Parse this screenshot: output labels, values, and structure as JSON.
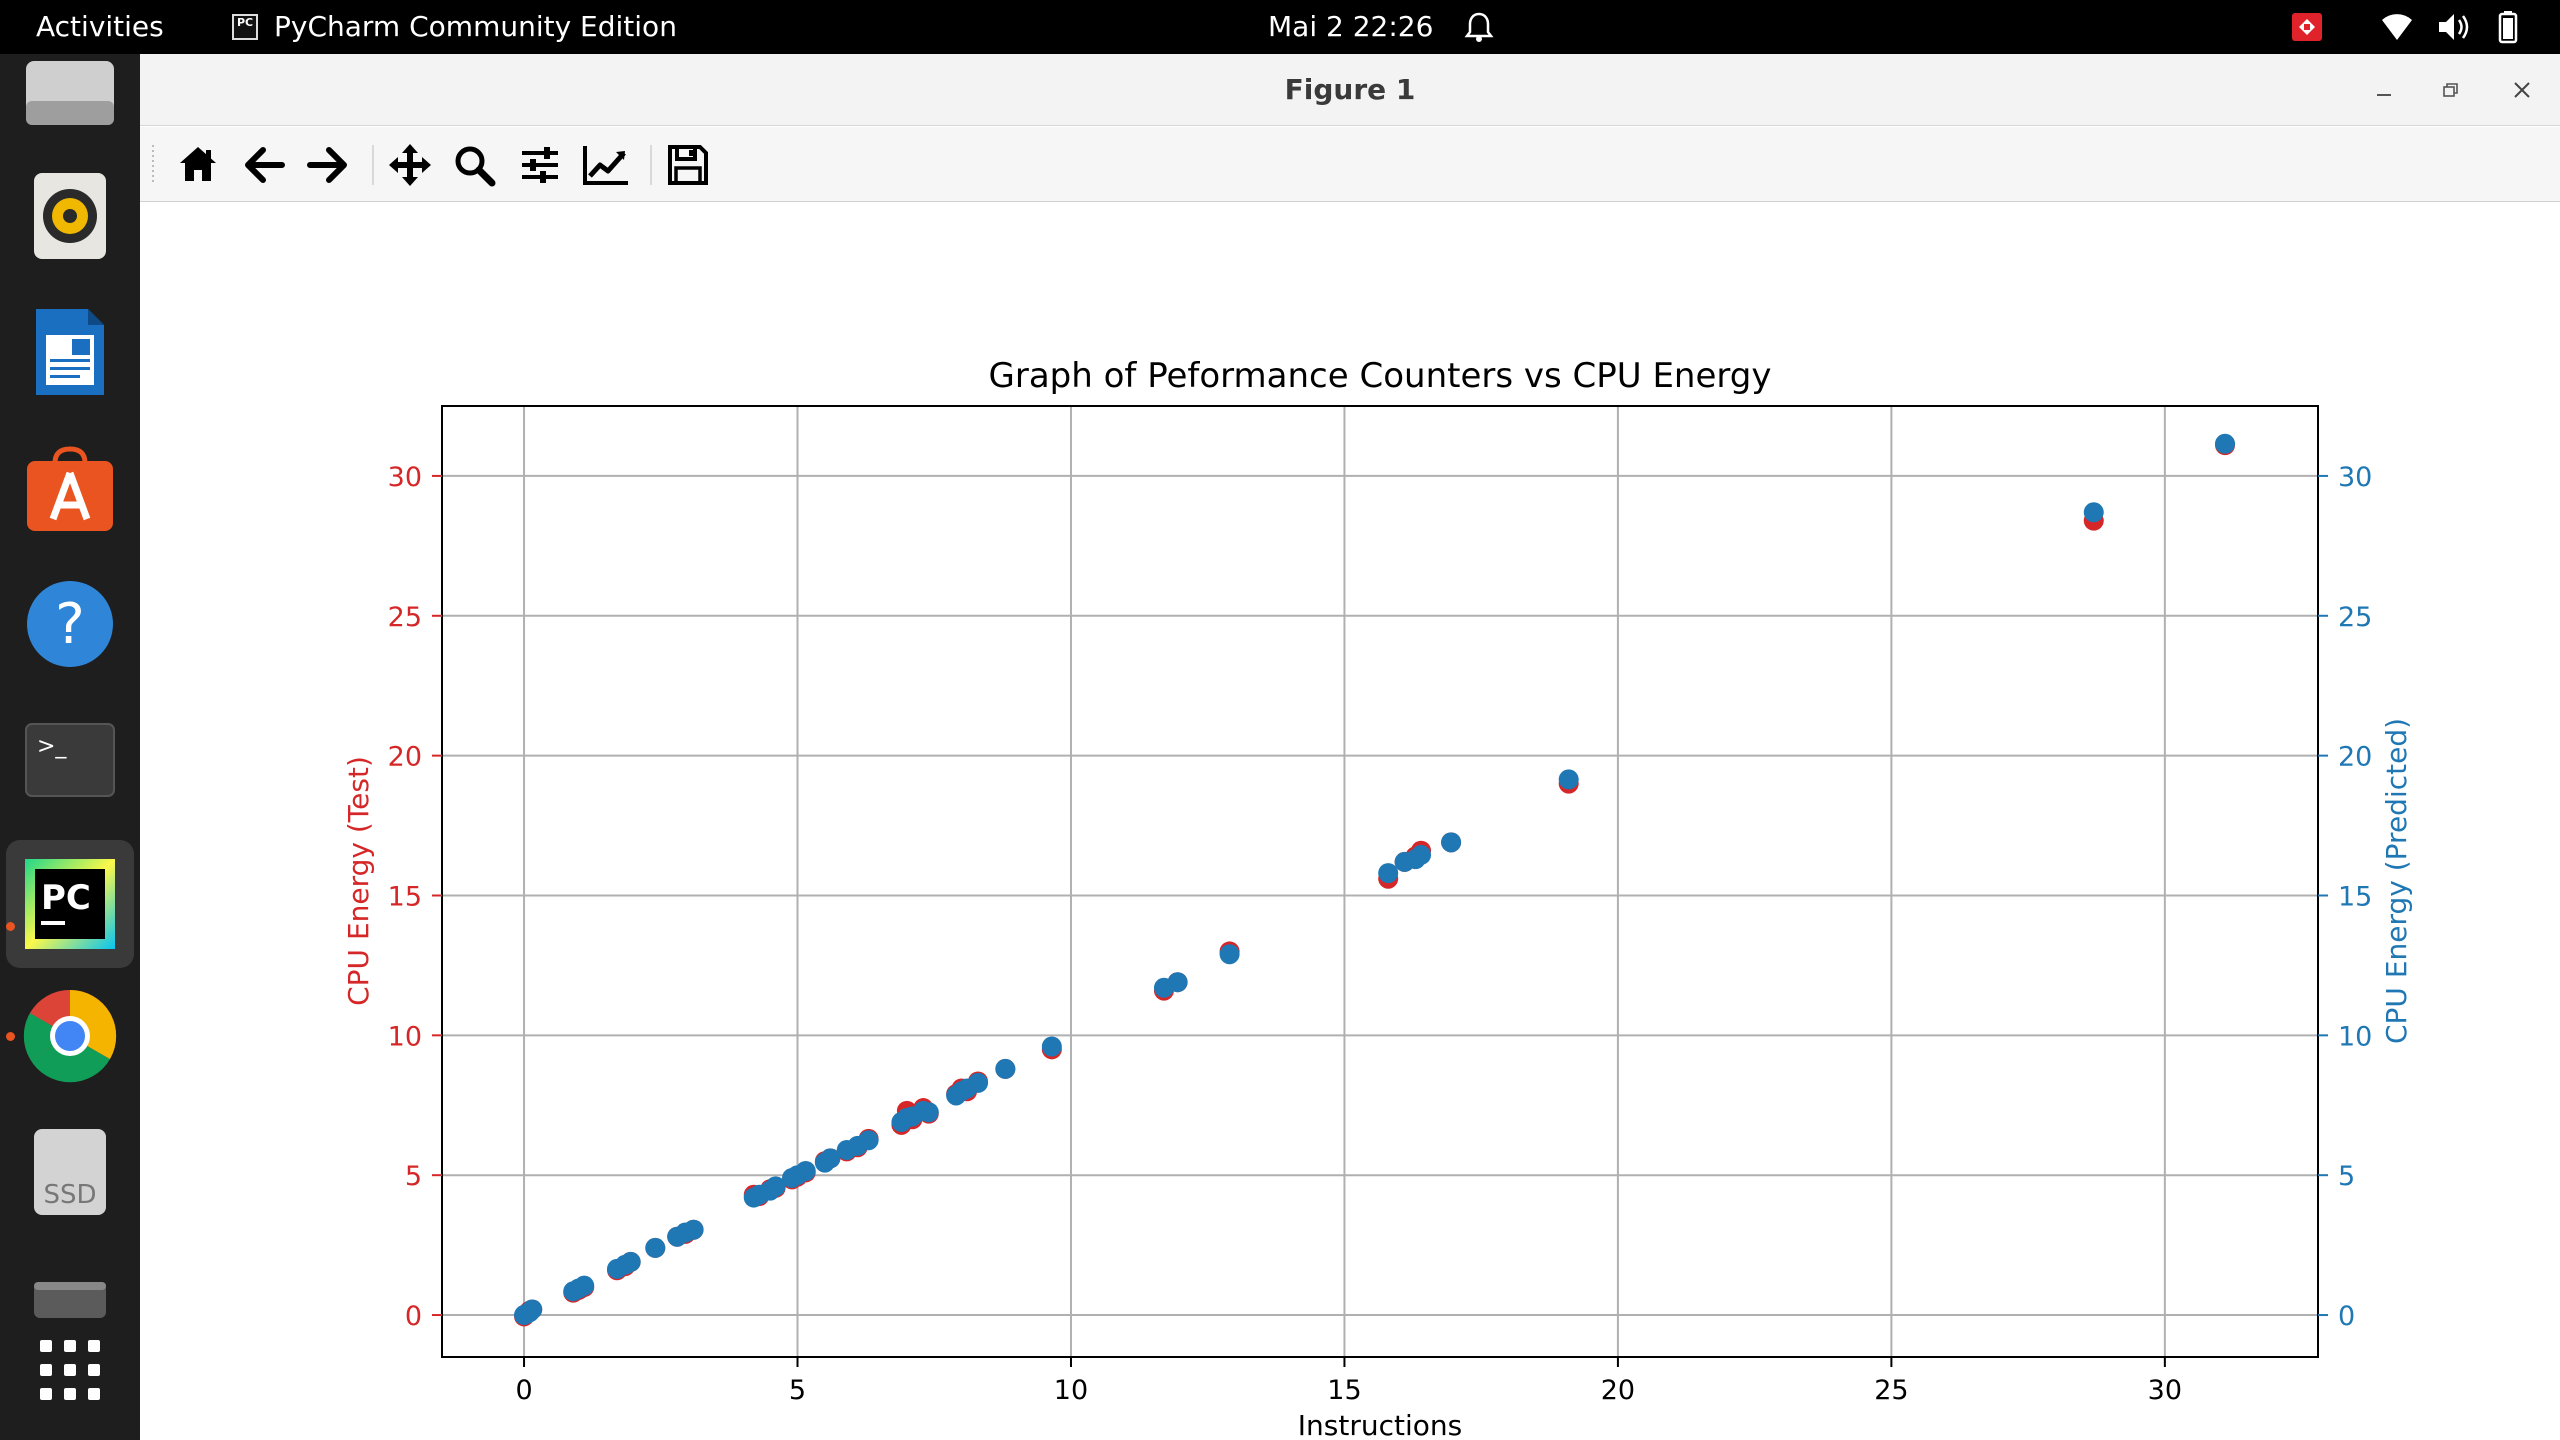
{
  "topbar": {
    "activities": "Activities",
    "app_name": "PyCharm Community Edition",
    "app_icon_text": "PC",
    "clock": "Mai 2  22:26"
  },
  "dock": {
    "items": [
      {
        "name": "files",
        "icon": "file-manager-icon"
      },
      {
        "name": "rhythmbox",
        "icon": "speaker-icon"
      },
      {
        "name": "libreoffice-writer",
        "icon": "document-icon"
      },
      {
        "name": "ubuntu-software",
        "icon": "software-store-icon"
      },
      {
        "name": "help",
        "icon": "help-icon",
        "label": "?"
      },
      {
        "name": "terminal",
        "icon": "terminal-icon",
        "label": ">_"
      },
      {
        "name": "pycharm",
        "icon": "pycharm-icon",
        "label": "PC"
      },
      {
        "name": "chrome",
        "icon": "chrome-icon"
      },
      {
        "name": "ssd",
        "icon": "drive-icon",
        "label": "SSD"
      },
      {
        "name": "trash",
        "icon": "trash-icon"
      },
      {
        "name": "show-apps",
        "icon": "app-grid-icon"
      }
    ]
  },
  "window": {
    "title": "Figure 1"
  },
  "toolbar": {
    "buttons": [
      "home",
      "back",
      "forward",
      "pan",
      "zoom",
      "configure-subplots",
      "edit-axis",
      "save"
    ]
  },
  "colors": {
    "test": "#d62728",
    "predicted": "#1f77b4",
    "accent": "#e95420"
  },
  "chart_data": {
    "type": "scatter",
    "title": "Graph of Peformance Counters vs  CPU Energy",
    "xlabel": "Instructions",
    "ylabel_left": "CPU Energy (Test)",
    "ylabel_right": "CPU Energy (Predicted)",
    "xlim": [
      -1.5,
      32.8
    ],
    "ylim": [
      -1.5,
      32.5
    ],
    "xticks": [
      0,
      5,
      10,
      15,
      20,
      25,
      30
    ],
    "yticks": [
      0,
      5,
      10,
      15,
      20,
      25,
      30
    ],
    "grid": true,
    "series": [
      {
        "axis": "left",
        "color": "#d62728",
        "points": [
          [
            0.0,
            -0.05
          ],
          [
            0.05,
            0.05
          ],
          [
            0.1,
            0.15
          ],
          [
            0.15,
            0.2
          ],
          [
            0.9,
            0.8
          ],
          [
            1.0,
            0.9
          ],
          [
            1.1,
            1.0
          ],
          [
            1.7,
            1.6
          ],
          [
            1.85,
            1.75
          ],
          [
            1.95,
            1.9
          ],
          [
            2.4,
            2.4
          ],
          [
            2.8,
            2.8
          ],
          [
            2.95,
            2.9
          ],
          [
            3.1,
            3.05
          ],
          [
            4.2,
            4.3
          ],
          [
            4.3,
            4.25
          ],
          [
            4.5,
            4.5
          ],
          [
            4.6,
            4.55
          ],
          [
            4.9,
            4.85
          ],
          [
            5.0,
            4.95
          ],
          [
            5.15,
            5.1
          ],
          [
            5.5,
            5.5
          ],
          [
            5.6,
            5.6
          ],
          [
            5.9,
            5.85
          ],
          [
            6.1,
            6.0
          ],
          [
            6.3,
            6.3
          ],
          [
            6.9,
            6.8
          ],
          [
            7.0,
            7.3
          ],
          [
            7.1,
            7.0
          ],
          [
            7.3,
            7.4
          ],
          [
            7.4,
            7.2
          ],
          [
            7.9,
            7.9
          ],
          [
            8.0,
            8.1
          ],
          [
            8.1,
            8.0
          ],
          [
            8.3,
            8.35
          ],
          [
            8.8,
            8.8
          ],
          [
            9.65,
            9.5
          ],
          [
            11.7,
            11.6
          ],
          [
            11.95,
            11.9
          ],
          [
            12.9,
            13.0
          ],
          [
            15.8,
            15.6
          ],
          [
            16.1,
            16.2
          ],
          [
            16.3,
            16.4
          ],
          [
            16.4,
            16.6
          ],
          [
            16.95,
            16.9
          ],
          [
            19.1,
            19.0
          ],
          [
            28.7,
            28.4
          ],
          [
            31.1,
            31.1
          ]
        ]
      },
      {
        "axis": "right",
        "color": "#1f77b4",
        "points": [
          [
            0.0,
            0.0
          ],
          [
            0.05,
            0.05
          ],
          [
            0.1,
            0.1
          ],
          [
            0.15,
            0.2
          ],
          [
            0.9,
            0.85
          ],
          [
            1.0,
            0.95
          ],
          [
            1.1,
            1.05
          ],
          [
            1.7,
            1.65
          ],
          [
            1.85,
            1.8
          ],
          [
            1.95,
            1.9
          ],
          [
            2.4,
            2.4
          ],
          [
            2.8,
            2.8
          ],
          [
            2.95,
            2.95
          ],
          [
            3.1,
            3.05
          ],
          [
            4.2,
            4.2
          ],
          [
            4.3,
            4.3
          ],
          [
            4.5,
            4.45
          ],
          [
            4.6,
            4.6
          ],
          [
            4.9,
            4.9
          ],
          [
            5.0,
            5.0
          ],
          [
            5.15,
            5.15
          ],
          [
            5.5,
            5.45
          ],
          [
            5.6,
            5.6
          ],
          [
            5.9,
            5.9
          ],
          [
            6.1,
            6.05
          ],
          [
            6.3,
            6.25
          ],
          [
            6.9,
            6.9
          ],
          [
            7.0,
            7.05
          ],
          [
            7.1,
            7.1
          ],
          [
            7.3,
            7.3
          ],
          [
            7.4,
            7.25
          ],
          [
            7.9,
            7.85
          ],
          [
            8.0,
            8.0
          ],
          [
            8.1,
            8.1
          ],
          [
            8.3,
            8.3
          ],
          [
            8.8,
            8.8
          ],
          [
            9.65,
            9.6
          ],
          [
            11.7,
            11.7
          ],
          [
            11.95,
            11.9
          ],
          [
            12.9,
            12.9
          ],
          [
            15.8,
            15.8
          ],
          [
            16.1,
            16.2
          ],
          [
            16.3,
            16.3
          ],
          [
            16.4,
            16.45
          ],
          [
            16.95,
            16.9
          ],
          [
            19.1,
            19.15
          ],
          [
            28.7,
            28.7
          ],
          [
            31.1,
            31.15
          ]
        ]
      }
    ]
  }
}
